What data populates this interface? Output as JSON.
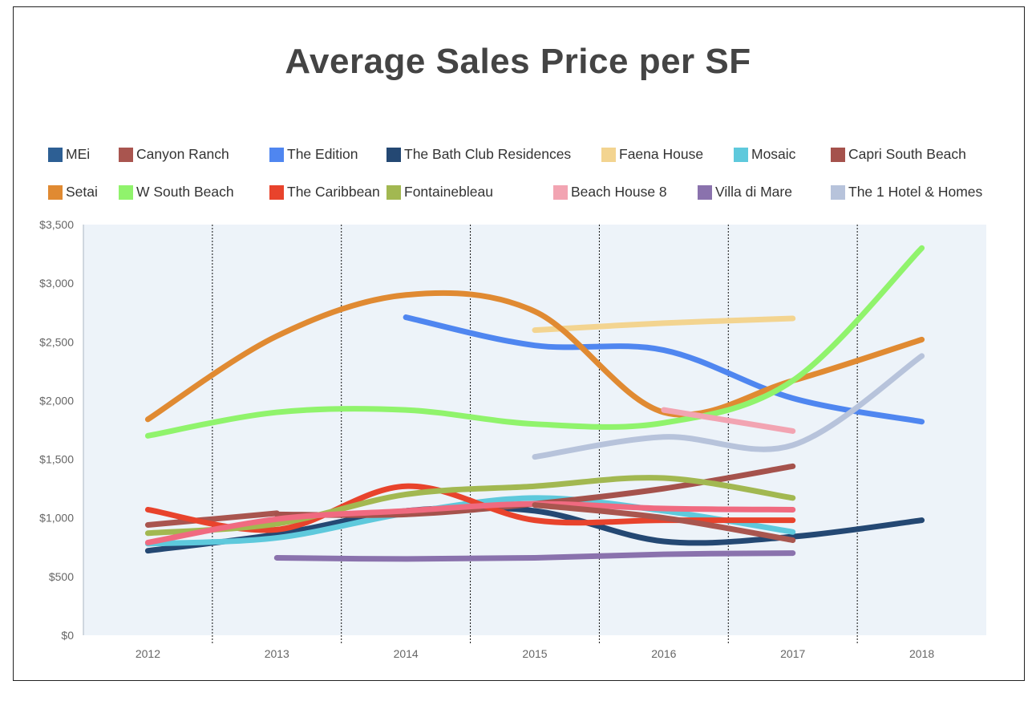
{
  "chart_data": {
    "type": "line",
    "title": "Average Sales Price per SF",
    "xlabel": "",
    "ylabel": "",
    "x": [
      "2012",
      "2013",
      "2014",
      "2015",
      "2016",
      "2017",
      "2018"
    ],
    "y_ticks": [
      "$0",
      "$500",
      "$1,000",
      "$1,500",
      "$2,000",
      "$2,500",
      "$3,000",
      "$3,500"
    ],
    "ylim": [
      0,
      3500
    ],
    "grid": "vertical dotted separators between years",
    "legend_placement": "top",
    "series": [
      {
        "name": "MEi",
        "color": "#2d5f94",
        "values": [
          null,
          null,
          null,
          null,
          null,
          null,
          null
        ]
      },
      {
        "name": "Canyon Ranch",
        "color": "#a9554f",
        "values": [
          940,
          1040,
          null,
          null,
          null,
          null,
          null
        ]
      },
      {
        "name": "The Edition",
        "color": "#4f86f0",
        "values": [
          null,
          null,
          2710,
          2470,
          2430,
          2020,
          1820
        ]
      },
      {
        "name": "The Bath Club Residences",
        "color": "#244873",
        "values": [
          720,
          860,
          1060,
          1060,
          800,
          840,
          980
        ]
      },
      {
        "name": "Faena House",
        "color": "#f3d490",
        "values": [
          null,
          null,
          null,
          2600,
          2660,
          2700,
          null
        ]
      },
      {
        "name": "Mosaic",
        "color": "#5ec9dc",
        "values": [
          780,
          830,
          1040,
          1170,
          1060,
          880,
          null
        ]
      },
      {
        "name": "Capri South Beach",
        "color": "#a5524c",
        "values": [
          null,
          1030,
          1030,
          1120,
          1250,
          1440,
          null
        ]
      },
      {
        "name": "Setai",
        "color": "#e08a32",
        "values": [
          1840,
          2550,
          2900,
          2760,
          1900,
          2170,
          2520
        ]
      },
      {
        "name": "W South Beach",
        "color": "#90f36c",
        "values": [
          1700,
          1900,
          1920,
          1800,
          1810,
          2170,
          3300
        ]
      },
      {
        "name": "The Caribbean",
        "color": "#e8432c",
        "values": [
          1070,
          900,
          1270,
          980,
          980,
          980,
          null
        ]
      },
      {
        "name": "Fontainebleau",
        "color": "#a2b851",
        "values": [
          870,
          950,
          1200,
          1270,
          1340,
          1170,
          null
        ]
      },
      {
        "name": "Beach House 8",
        "color": "#f2a4b2",
        "values": [
          null,
          null,
          null,
          null,
          1920,
          1740,
          null
        ]
      },
      {
        "name": "Villa di Mare",
        "color": "#8a72ad",
        "values": [
          null,
          660,
          650,
          660,
          690,
          700,
          null
        ]
      },
      {
        "name": "The 1 Hotel & Homes",
        "color": "#b7c3db",
        "values": [
          null,
          null,
          null,
          1520,
          1690,
          1620,
          2380
        ]
      },
      {
        "name": "",
        "color": "#f06a80",
        "values": [
          790,
          990,
          1060,
          1120,
          1080,
          1070,
          null
        ]
      },
      {
        "name": "",
        "color": "#a9564f",
        "values": [
          null,
          null,
          null,
          1110,
          1000,
          810,
          null
        ]
      }
    ]
  }
}
